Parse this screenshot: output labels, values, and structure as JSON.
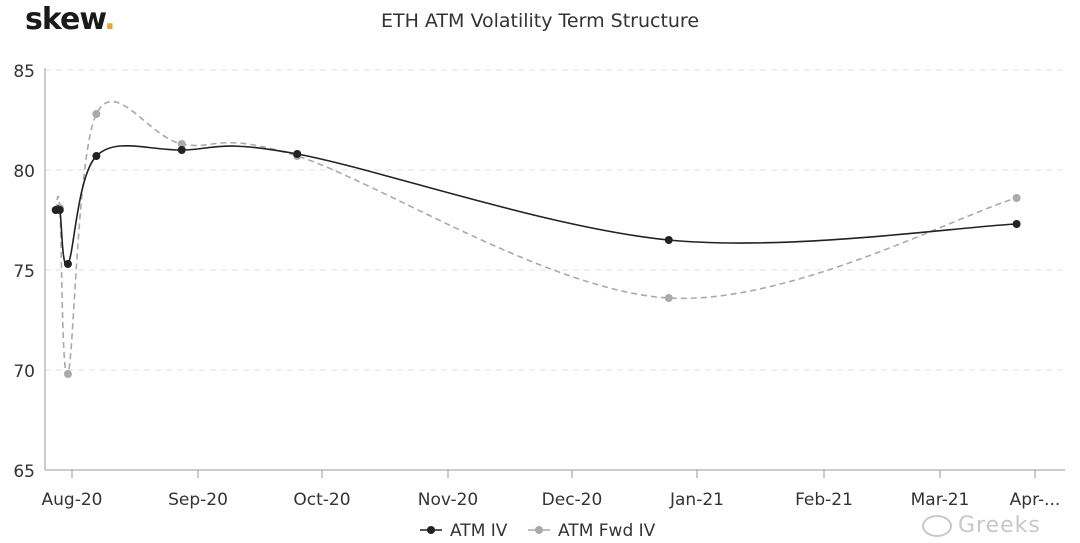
{
  "brand": {
    "name": "skew",
    "dot": "."
  },
  "watermark": {
    "text": "Greeks",
    "icon": "wechat-icon"
  },
  "colors": {
    "atm_iv": "#222222",
    "atm_fwd_iv": "#aaaaaa",
    "grid": "#e0e0e0",
    "axis_text": "#333333"
  },
  "chart_data": {
    "type": "line",
    "title": "ETH ATM Volatility Term Structure",
    "xlabel": "",
    "ylabel": "",
    "x_ticks": [
      "Aug-20",
      "Sep-20",
      "Oct-20",
      "Nov-20",
      "Dec-20",
      "Jan-21",
      "Feb-21",
      "Mar-21",
      "Apr-..."
    ],
    "ylim": [
      65,
      85
    ],
    "y_ticks": [
      65,
      70,
      75,
      80,
      85
    ],
    "grid": "horizontal dashed",
    "legend_position": "bottom-center",
    "series": [
      {
        "name": "ATM IV",
        "style": "solid",
        "points": [
          {
            "x": "2020-07-28",
            "y": 78.0
          },
          {
            "x": "2020-07-29",
            "y": 78.0
          },
          {
            "x": "2020-07-31",
            "y": 75.3
          },
          {
            "x": "2020-08-07",
            "y": 80.7
          },
          {
            "x": "2020-08-28",
            "y": 81.0
          },
          {
            "x": "2020-09-25",
            "y": 80.8
          },
          {
            "x": "2020-12-25",
            "y": 76.5
          },
          {
            "x": "2021-03-26",
            "y": 77.3
          }
        ]
      },
      {
        "name": "ATM Fwd IV",
        "style": "dashed",
        "points": [
          {
            "x": "2020-07-28",
            "y": 78.0
          },
          {
            "x": "2020-07-29",
            "y": 78.1
          },
          {
            "x": "2020-07-31",
            "y": 69.8
          },
          {
            "x": "2020-08-07",
            "y": 82.8
          },
          {
            "x": "2020-08-28",
            "y": 81.3
          },
          {
            "x": "2020-09-25",
            "y": 80.7
          },
          {
            "x": "2020-12-25",
            "y": 73.6
          },
          {
            "x": "2021-03-26",
            "y": 78.6
          }
        ]
      }
    ]
  }
}
